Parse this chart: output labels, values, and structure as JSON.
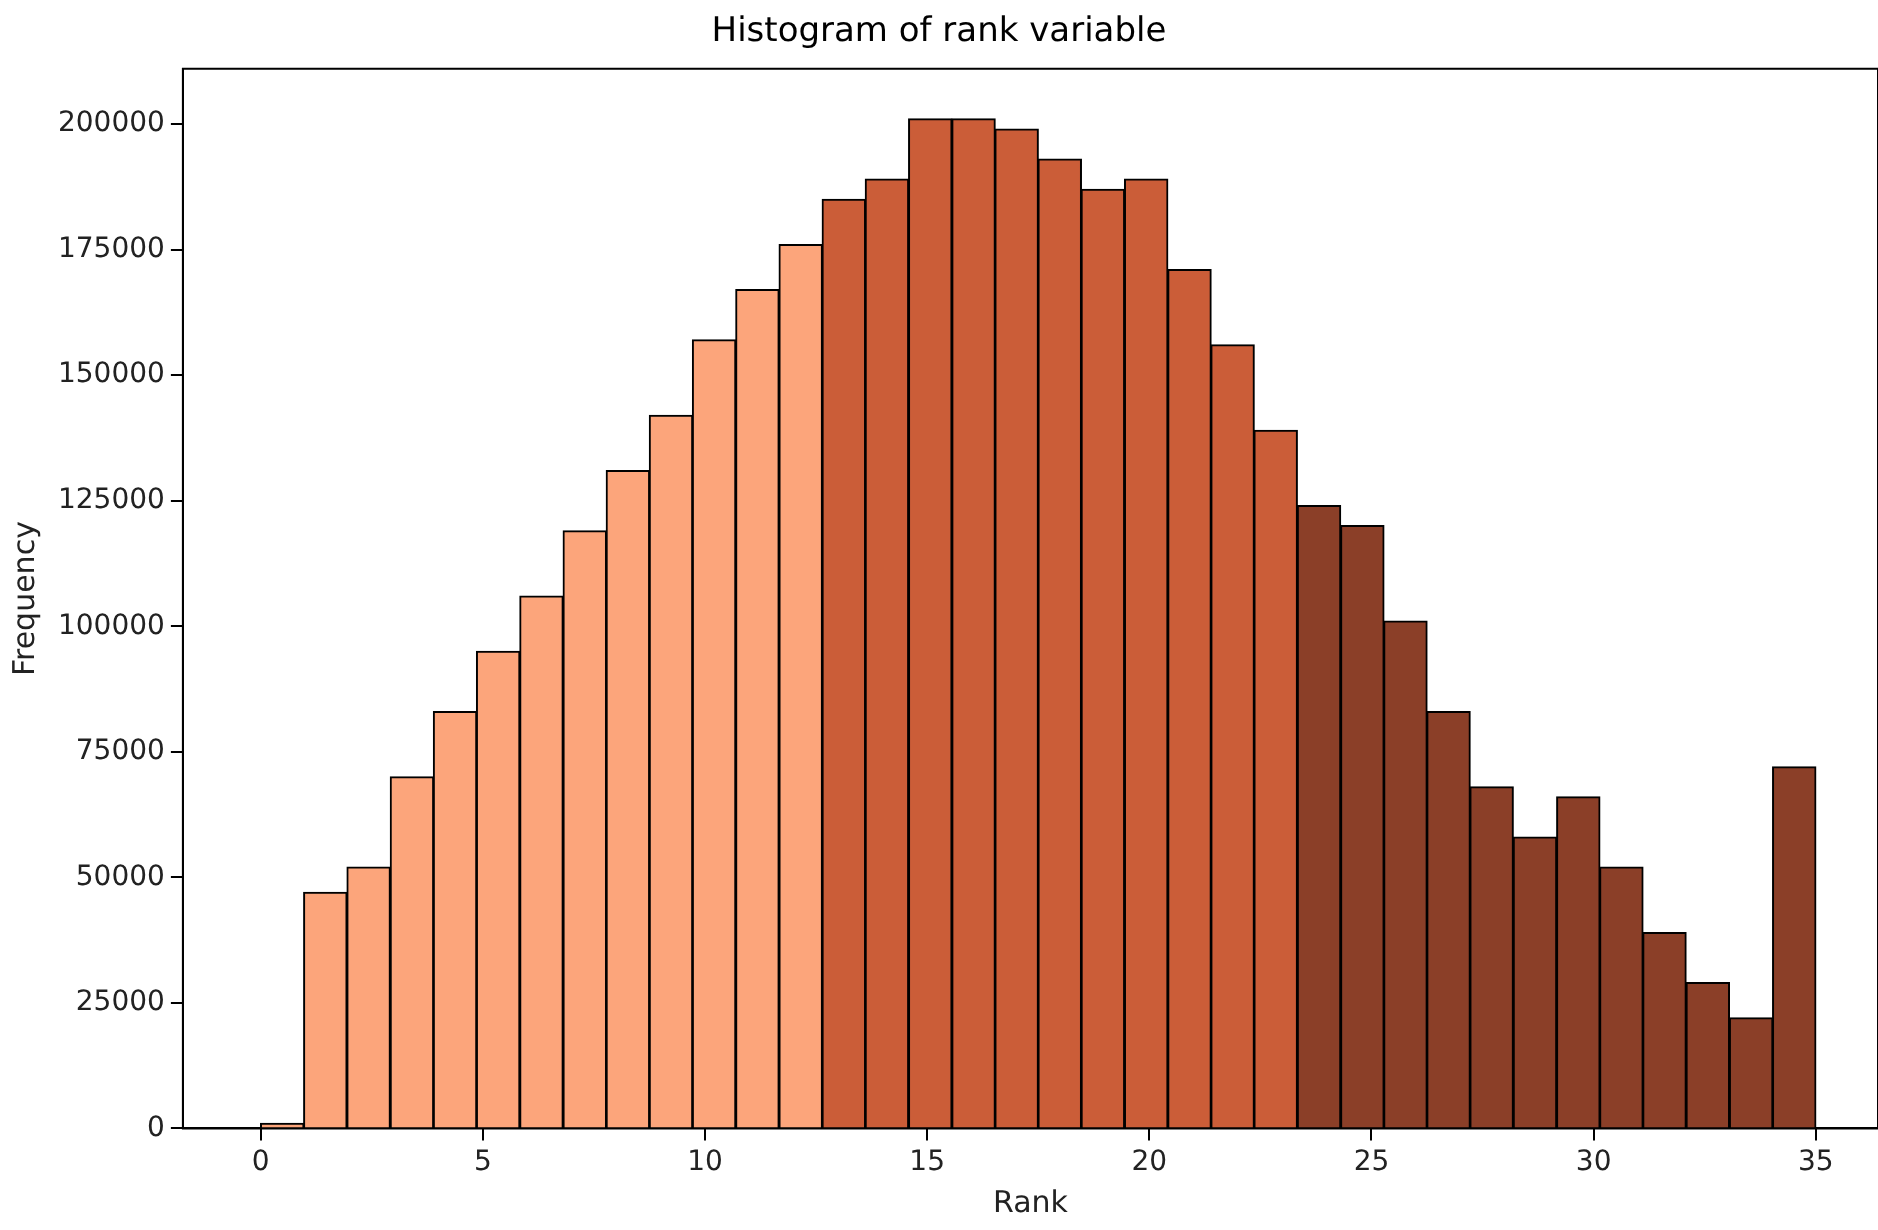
{
  "chart_data": {
    "type": "histogram",
    "title": "Histogram of rank variable",
    "xlabel": "Rank",
    "ylabel": "Frequency",
    "bins": [
      0,
      0.97,
      1.94,
      2.92,
      3.89,
      4.86,
      5.83,
      6.81,
      7.78,
      8.75,
      9.72,
      10.69,
      11.67,
      12.64,
      13.61,
      14.58,
      15.56,
      16.53,
      17.5,
      18.47,
      19.44,
      20.42,
      21.39,
      22.36,
      23.33,
      24.31,
      25.28,
      26.25,
      27.22,
      28.19,
      29.17,
      30.14,
      31.11,
      32.08,
      33.06,
      34.03,
      35
    ],
    "values": [
      1000,
      47000,
      52000,
      70000,
      83000,
      95000,
      106000,
      119000,
      131000,
      142000,
      157000,
      167000,
      176000,
      185000,
      189000,
      201000,
      201000,
      199000,
      193000,
      187000,
      189000,
      171000,
      156000,
      139000,
      124000,
      120000,
      101000,
      83000,
      68000,
      58000,
      66000,
      52000,
      39000,
      29000,
      22000,
      72000
    ],
    "colors": [
      "#fca57b",
      "#fca57b",
      "#fca57b",
      "#fca57b",
      "#fca57b",
      "#fca57b",
      "#fca57b",
      "#fca57b",
      "#fca57b",
      "#fca57b",
      "#fca57b",
      "#fca57b",
      "#fca57b",
      "#cb5d38",
      "#cb5d38",
      "#cb5d38",
      "#cb5d38",
      "#cb5d38",
      "#cb5d38",
      "#cb5d38",
      "#cb5d38",
      "#cb5d38",
      "#cb5d38",
      "#cb5d38",
      "#8b3f28",
      "#8b3f28",
      "#8b3f28",
      "#8b3f28",
      "#8b3f28",
      "#8b3f28",
      "#8b3f28",
      "#8b3f28",
      "#8b3f28",
      "#8b3f28",
      "#8b3f28",
      "#8b3f28"
    ],
    "xlim": [
      -1.75,
      36.4
    ],
    "xticks": [
      0,
      5,
      10,
      15,
      20,
      25,
      30,
      35
    ],
    "ylim": [
      0,
      211000
    ],
    "yticks": [
      0,
      25000,
      50000,
      75000,
      100000,
      125000,
      150000,
      175000,
      200000
    ],
    "grid": false,
    "legend": false
  }
}
